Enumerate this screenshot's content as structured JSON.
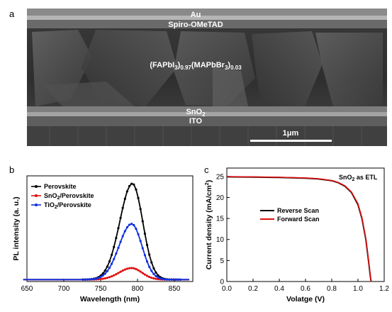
{
  "panel_a": {
    "letter": "a",
    "labels": {
      "au": "Au",
      "spiro": "Spiro-OMeTAD",
      "perovskite": "(FAPbI3)0.97(MAPbBr3)0.03",
      "sno2": "SnO2",
      "ito": "ITO"
    },
    "scale_bar_label": "1μm"
  },
  "chart_data": [
    {
      "panel": "b",
      "type": "line",
      "xlabel": "Wavelength (nm)",
      "ylabel": "PL intensity (a. u.)",
      "xlim": [
        650,
        875
      ],
      "xticks": [
        650,
        700,
        750,
        800,
        850
      ],
      "ylim": [
        0,
        1.1
      ],
      "yticks_shown": false,
      "legend_position": "top-left",
      "series": [
        {
          "name": "Perovskite",
          "color": "#000000",
          "marker": "circle",
          "peak_nm": 793,
          "peak": 1.0
        },
        {
          "name": "SnO2/Perovskite",
          "color": "#e01010",
          "marker": "circle",
          "peak_nm": 792,
          "peak": 0.12
        },
        {
          "name": "TiO2/Perovskite",
          "color": "#1030e0",
          "marker": "circle",
          "peak_nm": 792,
          "peak": 0.58
        }
      ],
      "x": [
        645,
        700,
        720,
        740,
        755,
        765,
        775,
        785,
        793,
        800,
        810,
        820,
        830,
        840,
        850,
        860,
        870
      ]
    },
    {
      "panel": "c",
      "type": "line",
      "xlabel": "Volatge (V)",
      "ylabel": "Current density (mA/cm2)",
      "xlim": [
        0.0,
        1.2
      ],
      "xticks": [
        0.0,
        0.2,
        0.4,
        0.6,
        0.8,
        1.0,
        1.2
      ],
      "ylim": [
        0,
        27
      ],
      "yticks": [
        0,
        5,
        10,
        15,
        20,
        25
      ],
      "annotation": "SnO2 as ETL",
      "legend_position": "center-left",
      "series": [
        {
          "name": "Reverse Scan",
          "color": "#000000",
          "x": [
            0.0,
            0.2,
            0.4,
            0.6,
            0.7,
            0.8,
            0.85,
            0.9,
            0.95,
            1.0,
            1.03,
            1.06,
            1.08,
            1.095,
            1.1
          ],
          "y": [
            24.9,
            24.85,
            24.75,
            24.6,
            24.4,
            24.0,
            23.5,
            22.7,
            21.2,
            18.3,
            15.0,
            10.0,
            5.0,
            1.0,
            0.0
          ]
        },
        {
          "name": "Forward Scan",
          "color": "#e01010",
          "x": [
            0.0,
            0.2,
            0.4,
            0.6,
            0.7,
            0.8,
            0.85,
            0.9,
            0.95,
            1.0,
            1.03,
            1.06,
            1.08,
            1.095,
            1.1
          ],
          "y": [
            24.95,
            24.9,
            24.8,
            24.65,
            24.45,
            24.05,
            23.55,
            22.8,
            21.3,
            18.5,
            15.2,
            10.2,
            5.2,
            1.2,
            0.0
          ]
        }
      ]
    }
  ]
}
